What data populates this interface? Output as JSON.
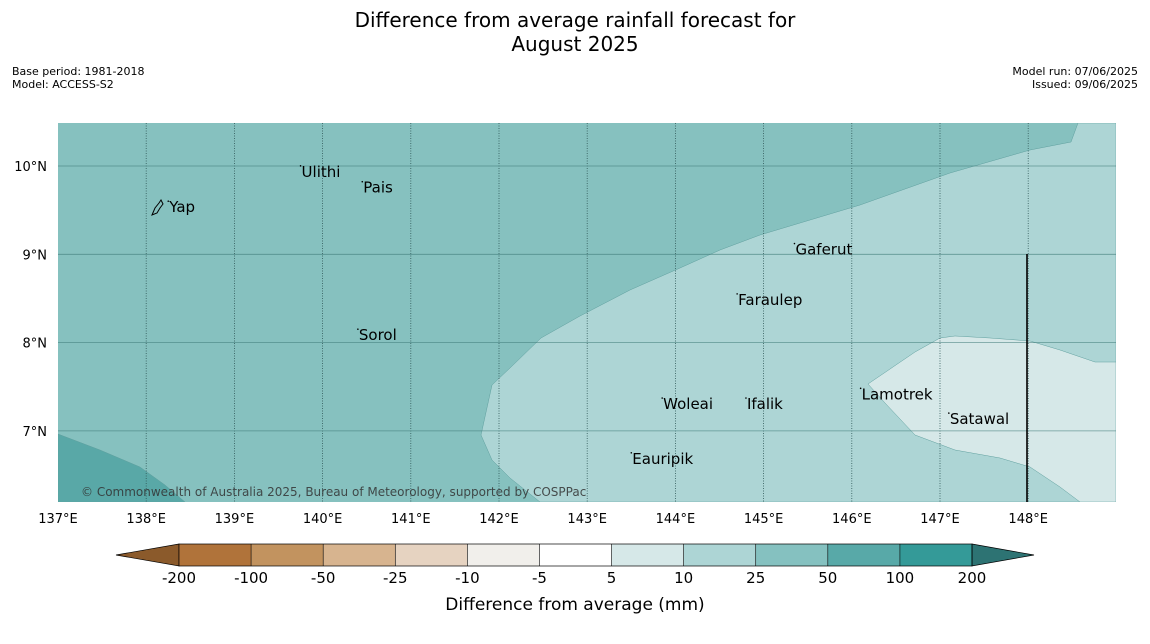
{
  "title": {
    "line1": "Difference from average rainfall forecast for",
    "line2": "August 2025"
  },
  "meta_left": {
    "base_period": "Base period: 1981-2018",
    "model": "Model: ACCESS-S2"
  },
  "meta_right": {
    "model_run": "Model run: 07/06/2025",
    "issued": "Issued: 09/06/2025"
  },
  "map": {
    "lon_range": [
      137,
      149
    ],
    "lat_range": [
      6.2,
      10.5
    ],
    "lon_ticks": [
      "137°E",
      "138°E",
      "139°E",
      "140°E",
      "141°E",
      "142°E",
      "143°E",
      "144°E",
      "145°E",
      "146°E",
      "147°E",
      "148°E"
    ],
    "lat_ticks": [
      "10°N",
      "9°N",
      "8°N",
      "7°N"
    ],
    "places": [
      {
        "name": "Ulithi",
        "lon": 139.75,
        "lat": 9.9
      },
      {
        "name": "Pais",
        "lon": 140.45,
        "lat": 9.72
      },
      {
        "name": "Yap",
        "lon": 138.25,
        "lat": 9.5
      },
      {
        "name": "Gaferut",
        "lon": 145.35,
        "lat": 9.02
      },
      {
        "name": "Faraulep",
        "lon": 144.7,
        "lat": 8.45
      },
      {
        "name": "Sorol",
        "lon": 140.4,
        "lat": 8.05
      },
      {
        "name": "Lamotrek",
        "lon": 146.1,
        "lat": 7.38
      },
      {
        "name": "Woleai",
        "lon": 143.85,
        "lat": 7.27
      },
      {
        "name": "Ifalik",
        "lon": 144.8,
        "lat": 7.27
      },
      {
        "name": "Satawal",
        "lon": 147.1,
        "lat": 7.1
      },
      {
        "name": "Eauripik",
        "lon": 143.5,
        "lat": 6.65
      }
    ],
    "copyright": "© Commonwealth of Australia 2025, Bureau of Meteorology, supported by COSPPac"
  },
  "colorbar": {
    "label": "Difference from average (mm)",
    "tick_labels": [
      "-200",
      "-100",
      "-50",
      "-25",
      "-10",
      "-5",
      "5",
      "10",
      "25",
      "50",
      "100",
      "200"
    ],
    "colors": {
      "below_min": "#8b5a2b",
      "bins": [
        "#b0733a",
        "#c2935f",
        "#d7b48f",
        "#e6d3c1",
        "#f1efeb",
        "#ffffff",
        "#d6e8e8",
        "#add5d5",
        "#85c1c0",
        "#58a9a8",
        "#349a98"
      ],
      "above_max": "#2d7373"
    }
  },
  "colors": {
    "zone_25_50": "#86c1bf",
    "zone_10_25": "#add5d5",
    "zone_5_10": "#d6e8e8",
    "zone_50_100": "#59a8a7"
  }
}
